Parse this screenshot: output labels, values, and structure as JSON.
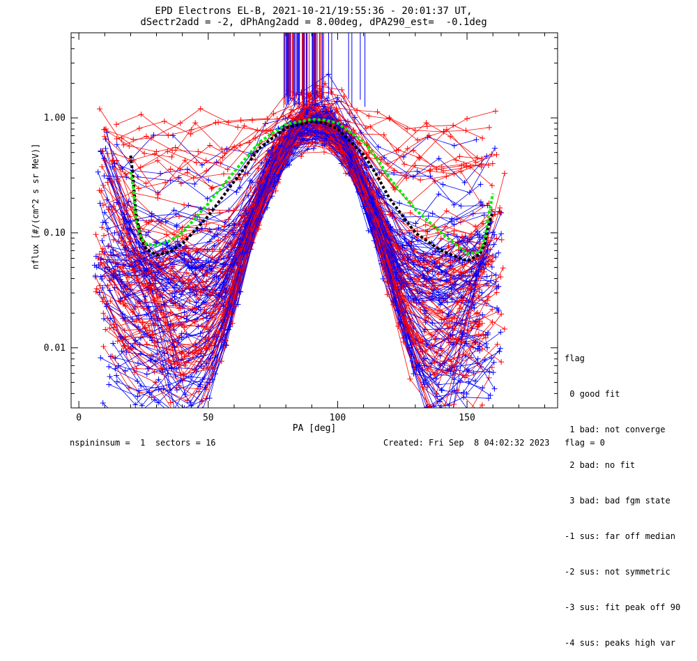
{
  "title_line1": "EPD Electrons EL-B, 2021-10-21/19:55:36 - 20:01:37 UT,",
  "title_line2": "dSectr2add = -2, dPhAng2add = 8.00deg, dPA290_est=  -0.1deg",
  "footer": {
    "left": "nspininsum =  1  sectors = 16",
    "right": "Created: Fri Sep  8 04:02:32 2023   flag = 0"
  },
  "legend": {
    "title": "flag",
    "items": [
      " 0 good fit",
      " 1 bad: not converge",
      " 2 bad: no fit",
      " 3 bad: bad fgm state",
      "-1 sus: far off median",
      "-2 sus: not symmetric",
      "-3 sus: fit peak off 90",
      "-4 sus: peaks high var"
    ]
  },
  "chart_data": {
    "type": "line",
    "xlabel": "PA [deg]",
    "ylabel": "nflux [#/(cm^2 s sr MeV)]",
    "xlim": [
      -3,
      185
    ],
    "ylim": [
      0.003,
      5.5
    ],
    "yscale": "log",
    "x_ticks": [
      "0",
      "50",
      "100",
      "150"
    ],
    "y_ticks": [
      "0.01",
      "0.10",
      "1.00"
    ],
    "colors": {
      "red": "#ff0000",
      "blue": "#0000ff",
      "green": "#00ee00",
      "black": "#000000"
    },
    "fits": [
      {
        "color": "black",
        "x": [
          20,
          21,
          22,
          24,
          26,
          30,
          35,
          40,
          50,
          60,
          70,
          80,
          90,
          95,
          100,
          110,
          115,
          120,
          130,
          140,
          150,
          155,
          157,
          158,
          159,
          160
        ],
        "y": [
          0.47,
          0.3,
          0.15,
          0.09,
          0.072,
          0.064,
          0.068,
          0.08,
          0.14,
          0.28,
          0.55,
          0.82,
          0.93,
          0.9,
          0.8,
          0.48,
          0.32,
          0.2,
          0.1,
          0.07,
          0.057,
          0.065,
          0.082,
          0.11,
          0.13,
          0.155
        ]
      },
      {
        "color": "green",
        "x": [
          20,
          21,
          22,
          24,
          26,
          30,
          35,
          40,
          50,
          60,
          70,
          80,
          90,
          95,
          100,
          110,
          115,
          120,
          130,
          140,
          150,
          155,
          157,
          158,
          159,
          160
        ],
        "y": [
          0.34,
          0.25,
          0.13,
          0.09,
          0.08,
          0.078,
          0.085,
          0.1,
          0.18,
          0.34,
          0.62,
          0.88,
          0.97,
          0.96,
          0.9,
          0.62,
          0.45,
          0.3,
          0.16,
          0.1,
          0.066,
          0.068,
          0.09,
          0.13,
          0.17,
          0.22
        ]
      }
    ]
  }
}
